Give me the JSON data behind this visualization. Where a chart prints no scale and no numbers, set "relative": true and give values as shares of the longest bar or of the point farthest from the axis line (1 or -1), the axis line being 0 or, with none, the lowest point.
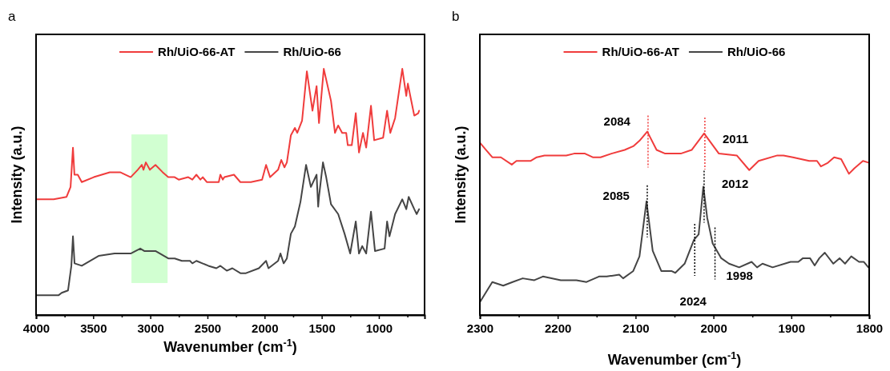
{
  "chart_data": [
    {
      "type": "line",
      "title": "a",
      "xlabel": "Wavenumber (cm$^{-1}$)",
      "ylabel": "Intensity (a.u.)",
      "relative": true,
      "legend": "top",
      "xlim": [
        4000,
        600
      ],
      "xticks": [
        4000,
        {
          "value": 3750,
          "label": null
        },
        3500,
        {
          "value": 3250,
          "label": null
        },
        3000,
        {
          "value": 2750,
          "label": null
        },
        2500,
        {
          "value": 2250,
          "label": null
        },
        2000,
        {
          "value": 1750,
          "label": null
        },
        1500,
        {
          "value": 1250,
          "label": null
        },
        1000,
        {
          "value": 750,
          "label": null
        }
      ],
      "bands": [
        {
          "axis": "x",
          "from": 3165,
          "to": 2849,
          "color": "#ccffcc"
        }
      ],
      "series": [
        {
          "name": "Rh/UiO-66-AT",
          "color": "#f03c3c",
          "x": [
            4000,
            3846,
            3733,
            3698,
            3677,
            3664,
            3635,
            3600,
            3495,
            3355,
            3264,
            3172,
            3110,
            3074,
            3060,
            3039,
            3004,
            2955,
            2892,
            2843,
            2787,
            2752,
            2668,
            2632,
            2597,
            2562,
            2541,
            2506,
            2401,
            2387,
            2366,
            2352,
            2268,
            2212,
            2120,
            2022,
            1987,
            1952,
            1882,
            1854,
            1826,
            1805,
            1770,
            1735,
            1714,
            1672,
            1630,
            1581,
            1545,
            1524,
            1482,
            1419,
            1384,
            1356,
            1321,
            1286,
            1272,
            1237,
            1202,
            1174,
            1139,
            1111,
            1069,
            1041,
            963,
            928,
            900,
            858,
            795,
            760,
            746,
            725,
            690,
            655,
            648
          ],
          "values": [
            0.47,
            0.47,
            0.48,
            0.52,
            0.68,
            0.57,
            0.57,
            0.54,
            0.56,
            0.58,
            0.58,
            0.56,
            0.59,
            0.61,
            0.59,
            0.62,
            0.59,
            0.61,
            0.58,
            0.56,
            0.56,
            0.55,
            0.56,
            0.55,
            0.57,
            0.55,
            0.56,
            0.54,
            0.54,
            0.57,
            0.55,
            0.56,
            0.57,
            0.54,
            0.54,
            0.55,
            0.61,
            0.56,
            0.59,
            0.63,
            0.6,
            0.62,
            0.73,
            0.76,
            0.74,
            0.79,
            0.99,
            0.83,
            0.93,
            0.78,
            1,
            0.87,
            0.74,
            0.77,
            0.74,
            0.74,
            0.69,
            0.69,
            0.82,
            0.66,
            0.74,
            0.68,
            0.85,
            0.71,
            0.72,
            0.83,
            0.74,
            0.8,
            1,
            0.89,
            0.94,
            0.89,
            0.81,
            0.82,
            0.83
          ]
        },
        {
          "name": "Rh/UiO-66",
          "color": "#454545",
          "x": [
            4000,
            3804,
            3776,
            3720,
            3691,
            3677,
            3663,
            3600,
            3453,
            3313,
            3172,
            3088,
            3053,
            2955,
            2843,
            2787,
            2724,
            2653,
            2632,
            2597,
            2492,
            2422,
            2387,
            2331,
            2282,
            2212,
            2163,
            2050,
            1987,
            1966,
            1882,
            1861,
            1833,
            1805,
            1770,
            1735,
            1686,
            1637,
            1595,
            1545,
            1531,
            1524,
            1489,
            1461,
            1419,
            1356,
            1300,
            1251,
            1202,
            1174,
            1146,
            1111,
            1069,
            1034,
            950,
            928,
            907,
            858,
            795,
            760,
            739,
            690,
            669,
            648
          ],
          "values": [
            0.08,
            0.08,
            0.09,
            0.1,
            0.2,
            0.32,
            0.21,
            0.2,
            0.24,
            0.25,
            0.25,
            0.27,
            0.26,
            0.26,
            0.23,
            0.23,
            0.22,
            0.22,
            0.21,
            0.22,
            0.2,
            0.19,
            0.2,
            0.18,
            0.19,
            0.17,
            0.17,
            0.19,
            0.22,
            0.19,
            0.22,
            0.25,
            0.21,
            0.23,
            0.33,
            0.36,
            0.46,
            0.61,
            0.52,
            0.57,
            0.44,
            0.48,
            0.62,
            0.56,
            0.45,
            0.41,
            0.33,
            0.25,
            0.38,
            0.25,
            0.28,
            0.25,
            0.42,
            0.26,
            0.27,
            0.38,
            0.32,
            0.41,
            0.47,
            0.43,
            0.48,
            0.43,
            0.41,
            0.43
          ]
        }
      ]
    },
    {
      "type": "line",
      "title": "b",
      "xlabel": "Wavenumber (cm$^{-1}$)",
      "ylabel": "Intensity (a.u.)",
      "relative": true,
      "legend": "top",
      "xlim": [
        2300,
        1800
      ],
      "xticks": [
        2300,
        {
          "value": 2250,
          "label": null
        },
        2200,
        {
          "value": 2150,
          "label": null
        },
        2100,
        {
          "value": 2050,
          "label": null
        },
        2000,
        {
          "value": 1950,
          "label": null
        },
        1900,
        {
          "value": 1850,
          "label": null
        },
        1800
      ],
      "ref_lines": [
        {
          "axis": "x",
          "value": 2084,
          "label": "2084",
          "color": "#f03c3c",
          "line_style": "dotted"
        },
        {
          "axis": "x",
          "value": 2011,
          "label": "2011",
          "color": "#f03c3c",
          "line_style": "dotted"
        },
        {
          "axis": "x",
          "value": 2085,
          "label": "2085",
          "color": "#000000",
          "line_style": "dotted"
        },
        {
          "axis": "x",
          "value": 2012,
          "label": "2012",
          "color": "#000000",
          "line_style": "dotted"
        },
        {
          "axis": "x",
          "value": 2024,
          "label": "2024",
          "color": "#000000",
          "line_style": "dotted"
        },
        {
          "axis": "x",
          "value": 1998,
          "label": "1998",
          "color": "#000000",
          "line_style": "dotted"
        }
      ],
      "series": [
        {
          "name": "Rh/UiO-66-AT",
          "color": "#f03c3c",
          "x": [
            2300,
            2292,
            2284,
            2273,
            2259,
            2253,
            2235,
            2227,
            2217,
            2206,
            2189,
            2179,
            2165,
            2155,
            2145,
            2131,
            2114,
            2103,
            2095,
            2085,
            2073,
            2062,
            2053,
            2042,
            2028,
            2012,
            1993,
            1970,
            1954,
            1942,
            1918,
            1910,
            1898,
            1877,
            1867,
            1862,
            1853,
            1845,
            1836,
            1826,
            1819,
            1808,
            1800
          ],
          "values": [
            0.94,
            0.9,
            0.86,
            0.86,
            0.82,
            0.84,
            0.84,
            0.86,
            0.87,
            0.87,
            0.87,
            0.88,
            0.88,
            0.86,
            0.86,
            0.88,
            0.9,
            0.92,
            0.95,
            1,
            0.9,
            0.88,
            0.88,
            0.88,
            0.9,
            0.99,
            0.88,
            0.87,
            0.79,
            0.84,
            0.87,
            0.87,
            0.86,
            0.84,
            0.84,
            0.81,
            0.83,
            0.86,
            0.85,
            0.77,
            0.8,
            0.84,
            0.83
          ]
        },
        {
          "name": "Rh/UiO-66",
          "color": "#454545",
          "x": [
            2300,
            2284,
            2270,
            2258,
            2245,
            2230,
            2219,
            2196,
            2176,
            2163,
            2147,
            2137,
            2121,
            2116,
            2103,
            2095,
            2086,
            2078,
            2067,
            2054,
            2049,
            2037,
            2025,
            2019,
            2013,
            2008,
            2001,
            1990,
            1980,
            1967,
            1951,
            1944,
            1937,
            1924,
            1901,
            1891,
            1885,
            1876,
            1870,
            1864,
            1857,
            1846,
            1838,
            1831,
            1823,
            1813,
            1807,
            1801
          ],
          "values": [
            0.07,
            0.18,
            0.16,
            0.18,
            0.2,
            0.19,
            0.21,
            0.19,
            0.19,
            0.18,
            0.21,
            0.21,
            0.22,
            0.2,
            0.24,
            0.32,
            0.62,
            0.35,
            0.24,
            0.24,
            0.23,
            0.28,
            0.41,
            0.44,
            0.7,
            0.53,
            0.39,
            0.31,
            0.28,
            0.26,
            0.29,
            0.26,
            0.28,
            0.26,
            0.29,
            0.29,
            0.31,
            0.31,
            0.27,
            0.31,
            0.34,
            0.28,
            0.31,
            0.28,
            0.32,
            0.29,
            0.29,
            0.26
          ]
        }
      ]
    }
  ]
}
